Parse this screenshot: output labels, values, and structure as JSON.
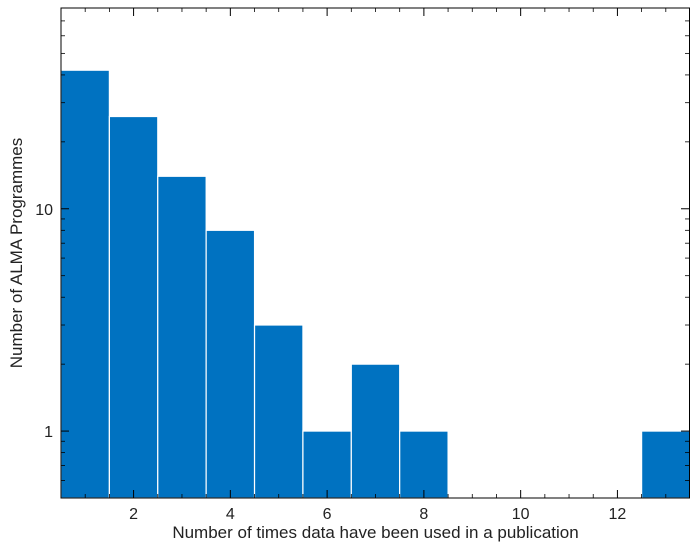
{
  "chart_data": {
    "type": "bar",
    "xlabel": "Number of times data have been used in a publication",
    "ylabel": "Number of ALMA Programmes",
    "yscale": "log",
    "xlim": [
      0.5,
      13.5
    ],
    "ylim": [
      0.5,
      80
    ],
    "x_ticks": [
      2,
      4,
      6,
      8,
      10,
      12
    ],
    "y_ticks": [
      1,
      10
    ],
    "bar_color": "#0072c1",
    "edge_color": "#ffffff",
    "bins": [
      {
        "x": 1,
        "value": 42
      },
      {
        "x": 2,
        "value": 26
      },
      {
        "x": 3,
        "value": 14
      },
      {
        "x": 4,
        "value": 8
      },
      {
        "x": 5,
        "value": 3
      },
      {
        "x": 6,
        "value": 1
      },
      {
        "x": 7,
        "value": 2
      },
      {
        "x": 8,
        "value": 1
      },
      {
        "x": 13,
        "value": 1
      }
    ],
    "grid": false,
    "legend": "none"
  }
}
